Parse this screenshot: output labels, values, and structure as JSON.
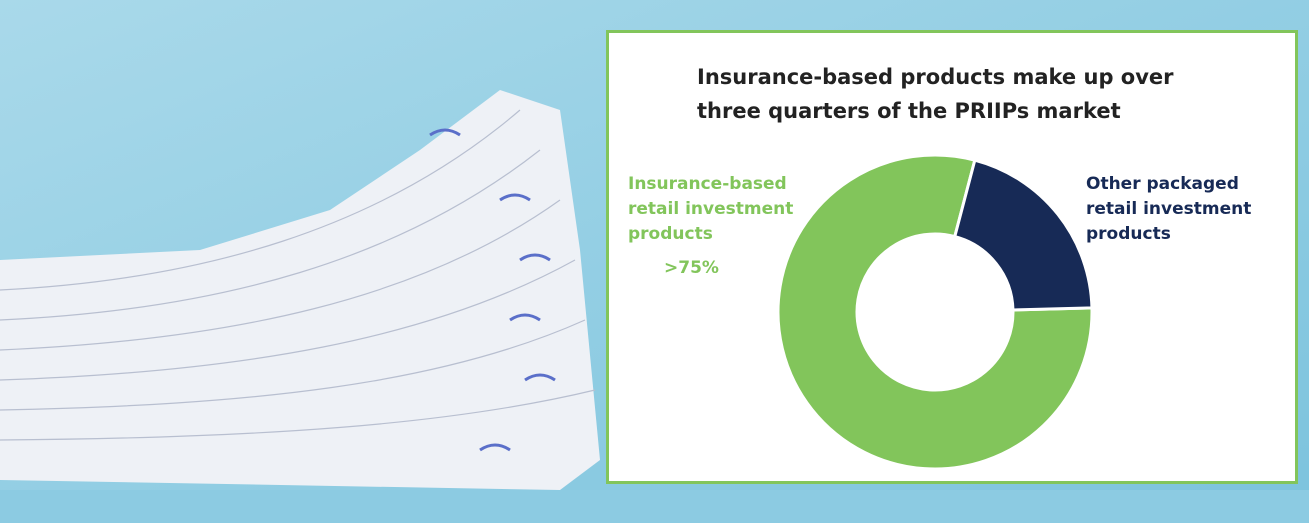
{
  "chart_data": {
    "type": "donut",
    "title": "Insurance-based products make up over three quarters of the PRIIPs market",
    "categories": [
      "Insurance-based retail investment products",
      "Other packaged retail investment products"
    ],
    "values": [
      79.5,
      20.5
    ],
    "colors": [
      "#82c55b",
      "#172a56"
    ],
    "annotation": ">75%"
  }
}
